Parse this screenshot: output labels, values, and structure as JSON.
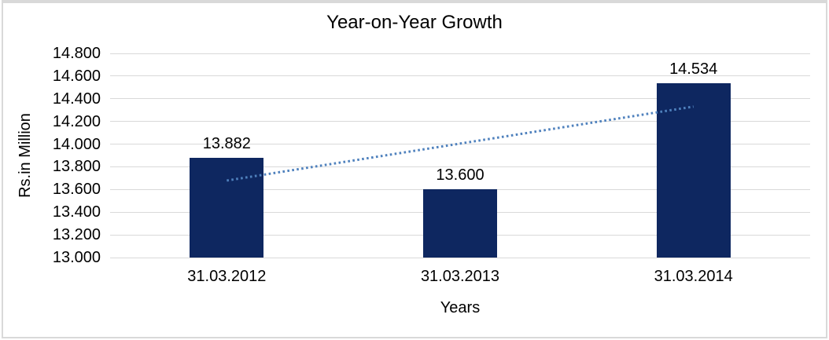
{
  "window": {
    "background_color": "#FFFFFF",
    "frame_border_color": "#D9D9D9"
  },
  "chart_data": {
    "type": "bar",
    "title": "Year-on-Year Growth",
    "xlabel": "Years",
    "ylabel": "Rs.in Million",
    "categories": [
      "31.03.2012",
      "31.03.2013",
      "31.03.2014"
    ],
    "values": [
      13.882,
      13.6,
      14.534
    ],
    "value_labels": [
      "13.882",
      "13.600",
      "14.534"
    ],
    "ylim": [
      13.0,
      14.8
    ],
    "yticks": [
      13.0,
      13.2,
      13.4,
      13.6,
      13.8,
      14.0,
      14.2,
      14.4,
      14.6,
      14.8
    ],
    "ytick_labels": [
      "13.000",
      "13.200",
      "13.400",
      "13.600",
      "13.800",
      "14.000",
      "14.200",
      "14.400",
      "14.600",
      "14.800"
    ],
    "grid": true,
    "gridline_color": "#D9D9D9",
    "bar_color": "#0E2760",
    "text_color": "#000000",
    "legend": "none",
    "trendline": {
      "type": "linear",
      "style": "dotted",
      "color": "#4F81BD",
      "start_value": 13.679,
      "end_value": 14.331
    }
  }
}
